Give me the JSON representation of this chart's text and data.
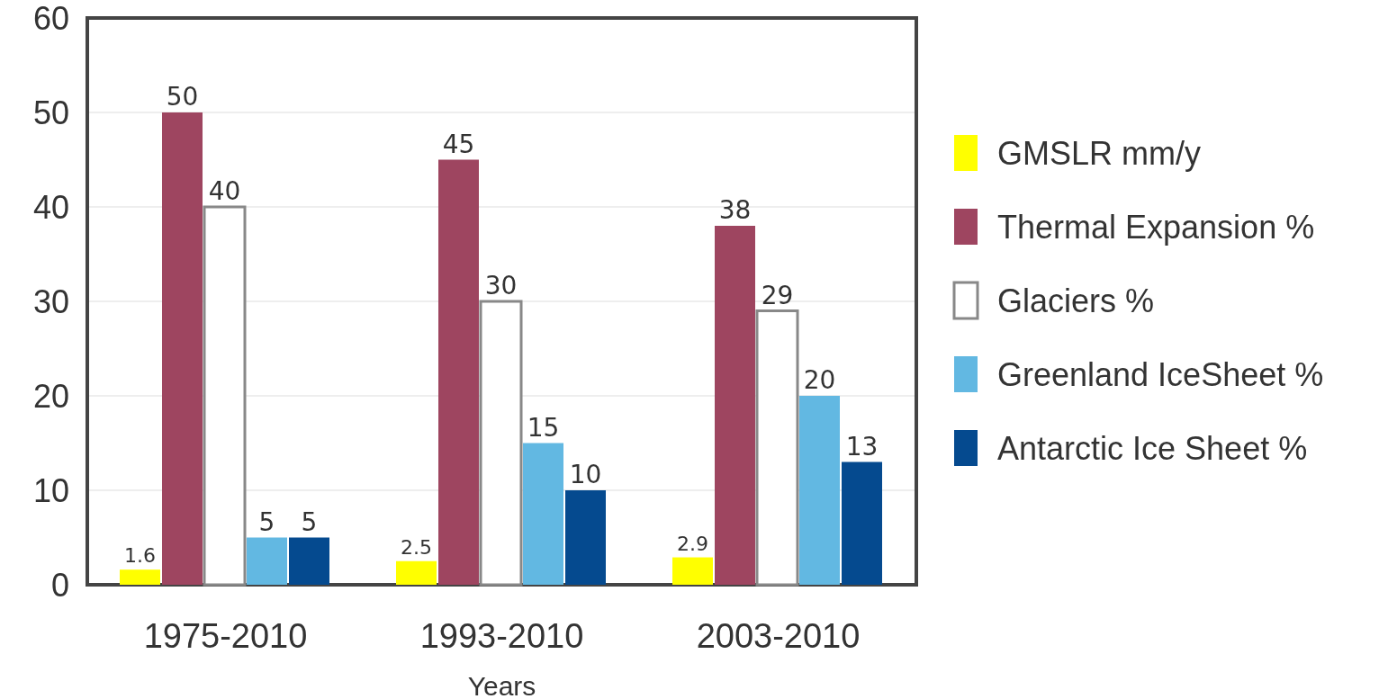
{
  "chart_data": {
    "type": "bar",
    "xlabel": "Years",
    "categories": [
      "1975-2010",
      "1993-2010",
      "2003-2010"
    ],
    "series": [
      {
        "name": "GMSLR mm/y",
        "color": "#ffff00",
        "values": [
          1.6,
          2.5,
          2.9
        ]
      },
      {
        "name": "Thermal Expansion %",
        "color": "#9e4560",
        "values": [
          50,
          45,
          38
        ]
      },
      {
        "name": "Glaciers %",
        "color": "#ffffff",
        "values": [
          40,
          30,
          29
        ]
      },
      {
        "name": "Greenland IceSheet %",
        "color": "#62b8e2",
        "values": [
          5,
          15,
          20
        ]
      },
      {
        "name": "Antarctic Ice Sheet %",
        "color": "#054a8f",
        "values": [
          5,
          10,
          13
        ]
      }
    ],
    "ylim": [
      0,
      60
    ],
    "yticks": [
      0,
      10,
      20,
      30,
      40,
      50,
      60
    ],
    "grid": "y",
    "legend": "right",
    "data_labels": true
  }
}
